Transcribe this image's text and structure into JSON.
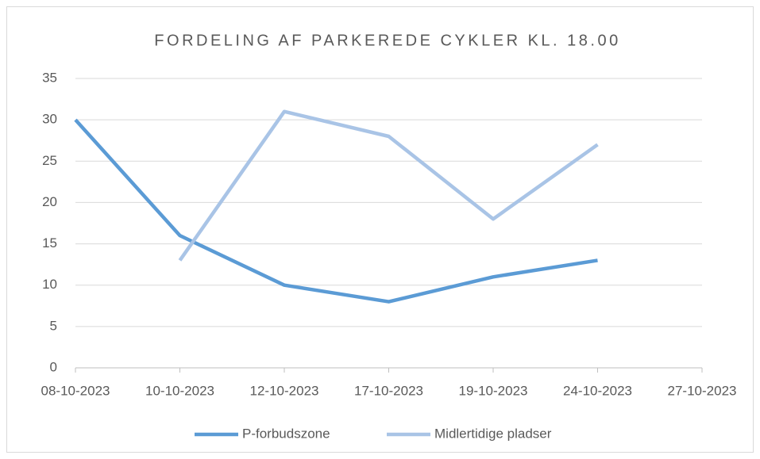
{
  "chart_data": {
    "type": "line",
    "title": "FORDELING AF PARKEREDE CYKLER KL. 18.00",
    "categories": [
      "08-10-2023",
      "10-10-2023",
      "12-10-2023",
      "17-10-2023",
      "19-10-2023",
      "24-10-2023",
      "27-10-2023"
    ],
    "series": [
      {
        "name": "P-forbudszone",
        "color": "#5b9bd5",
        "values": [
          30,
          16,
          10,
          8,
          11,
          13,
          null
        ]
      },
      {
        "name": "Midlertidige pladser",
        "color": "#a9c4e6",
        "values": [
          null,
          13,
          31,
          28,
          18,
          27,
          null
        ]
      }
    ],
    "ylim": [
      0,
      35
    ],
    "yticks": [
      0,
      5,
      10,
      15,
      20,
      25,
      30,
      35
    ],
    "grid": true,
    "legend": "bottom"
  }
}
